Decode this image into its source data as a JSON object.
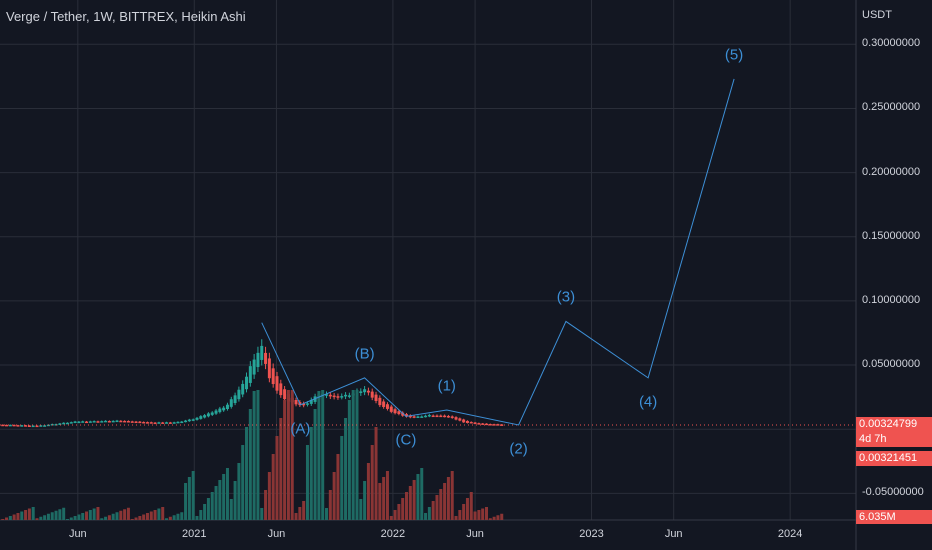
{
  "header": {
    "title": "Verge / Tether, 1W, BITTREX, Heikin Ashi"
  },
  "colors": {
    "background": "#131722",
    "grid": "#2a2e39",
    "bull": "#26a69a",
    "bear": "#ef5350",
    "bull_volume": "#1e6b64",
    "bear_volume": "#8a3535",
    "wave_line": "#3d8fd6",
    "price_tag": "#ef5350"
  },
  "chart_data": {
    "type": "candlestick",
    "title": "Verge / Tether, 1W, BITTREX, Heikin Ashi",
    "y_unit": "USDT",
    "ylim": [
      -0.07,
      0.33
    ],
    "y_ticks": [
      "0.30000000",
      "0.25000000",
      "0.20000000",
      "0.15000000",
      "0.10000000",
      "0.05000000",
      "-0.05000000"
    ],
    "y_tick_values": [
      0.3,
      0.25,
      0.2,
      0.15,
      0.1,
      0.05,
      -0.05
    ],
    "x_ticks": [
      "Jun",
      "2021",
      "Jun",
      "2022",
      "Jun",
      "2023",
      "Jun",
      "2024"
    ],
    "x_tick_dates": [
      "2020-06-01",
      "2021-01-01",
      "2021-06-01",
      "2022-01-01",
      "2022-06-01",
      "2023-01-01",
      "2023-06-01",
      "2024-01-01"
    ],
    "xlim": [
      "2020-01-10",
      "2024-05-01"
    ],
    "grid": true,
    "current_price": "0.00324799",
    "countdown": "4d 7h",
    "prev_price": "0.00321451",
    "volume_label": "6.035M",
    "price_series": [
      {
        "date": "2020-01-15",
        "value": 0.0035
      },
      {
        "date": "2020-03-15",
        "value": 0.0025
      },
      {
        "date": "2020-06-01",
        "value": 0.006
      },
      {
        "date": "2020-08-15",
        "value": 0.0065
      },
      {
        "date": "2020-10-15",
        "value": 0.005
      },
      {
        "date": "2020-12-01",
        "value": 0.0055
      },
      {
        "date": "2021-01-01",
        "value": 0.008
      },
      {
        "date": "2021-02-01",
        "value": 0.013
      },
      {
        "date": "2021-03-01",
        "value": 0.018
      },
      {
        "date": "2021-04-01",
        "value": 0.035
      },
      {
        "date": "2021-04-20",
        "value": 0.055
      },
      {
        "date": "2021-05-05",
        "value": 0.064
      },
      {
        "date": "2021-05-20",
        "value": 0.038
      },
      {
        "date": "2021-06-15",
        "value": 0.023
      },
      {
        "date": "2021-07-20",
        "value": 0.018
      },
      {
        "date": "2021-08-20",
        "value": 0.028
      },
      {
        "date": "2021-09-15",
        "value": 0.025
      },
      {
        "date": "2021-10-15",
        "value": 0.027
      },
      {
        "date": "2021-11-10",
        "value": 0.031
      },
      {
        "date": "2021-12-05",
        "value": 0.02
      },
      {
        "date": "2022-01-01",
        "value": 0.013
      },
      {
        "date": "2022-02-01",
        "value": 0.009
      },
      {
        "date": "2022-03-10",
        "value": 0.011
      },
      {
        "date": "2022-04-10",
        "value": 0.01
      },
      {
        "date": "2022-05-15",
        "value": 0.005
      },
      {
        "date": "2022-06-15",
        "value": 0.004
      },
      {
        "date": "2022-07-20",
        "value": 0.0035
      }
    ],
    "elliott_wave": [
      {
        "label": "",
        "date": "2021-05-05",
        "value": 0.083
      },
      {
        "label": "(A)",
        "date": "2021-07-15",
        "value": 0.019
      },
      {
        "label": "(B)",
        "date": "2021-11-10",
        "value": 0.04
      },
      {
        "label": "(C)",
        "date": "2022-01-25",
        "value": 0.01
      },
      {
        "label": "(1)",
        "date": "2022-04-10",
        "value": 0.015
      },
      {
        "label": "(2)",
        "date": "2022-08-20",
        "value": 0.0033
      },
      {
        "label": "(3)",
        "date": "2022-11-15",
        "value": 0.084
      },
      {
        "label": "(4)",
        "date": "2023-04-15",
        "value": 0.04
      },
      {
        "label": "(5)",
        "date": "2023-09-20",
        "value": 0.273
      }
    ]
  }
}
